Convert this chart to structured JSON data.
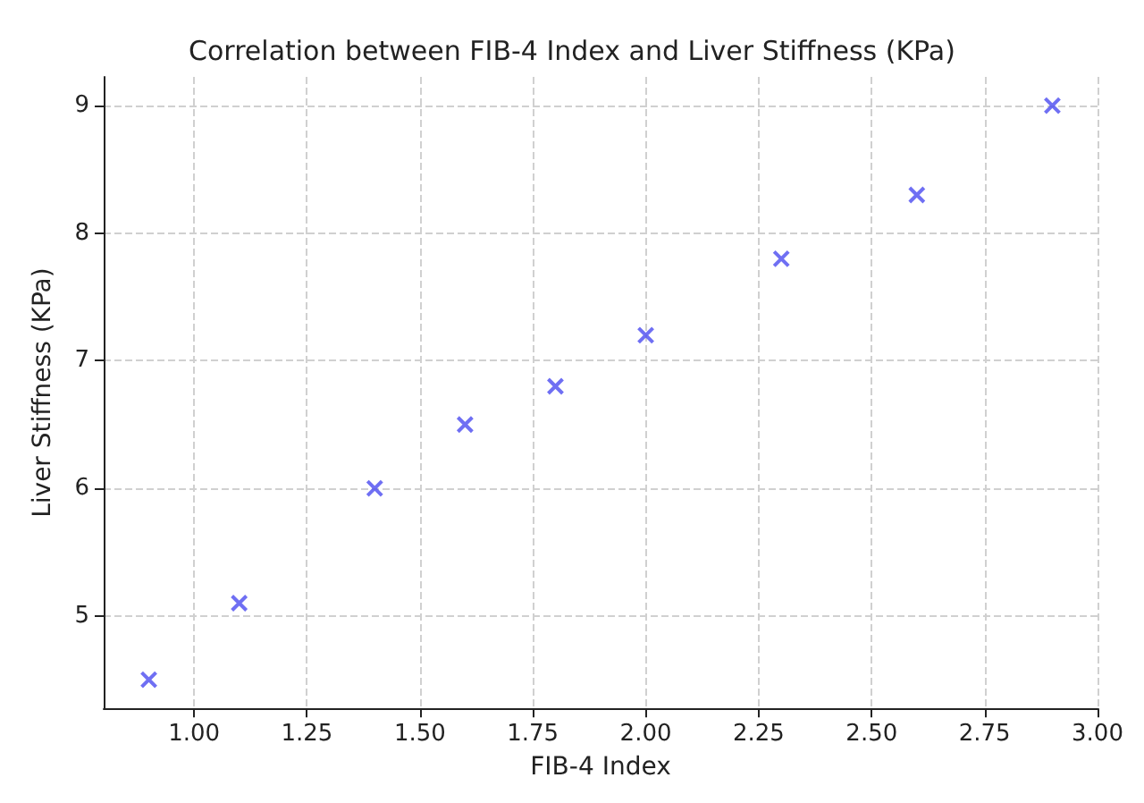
{
  "chart_data": {
    "type": "scatter",
    "title": "Correlation between FIB-4 Index and Liver Stiffness (KPa)",
    "xlabel": "FIB-4 Index",
    "ylabel": "Liver Stiffness (KPa)",
    "x": [
      0.9,
      1.1,
      1.4,
      1.6,
      1.8,
      2.0,
      2.3,
      2.6,
      2.9
    ],
    "series": [
      {
        "color": "#4b4bf0",
        "values": [
          4.5,
          5.1,
          6.0,
          6.5,
          6.8,
          7.2,
          7.8,
          8.3,
          9.0
        ]
      }
    ],
    "xlim": [
      0.8,
      3.0
    ],
    "ylim": [
      4.275,
      9.225
    ],
    "xticks": [
      {
        "value": 1,
        "label": "1.00"
      },
      {
        "value": 1.25,
        "label": "1.25"
      },
      {
        "value": 1.5,
        "label": "1.50"
      },
      {
        "value": 1.75,
        "label": "1.75"
      },
      {
        "value": 2,
        "label": "2.00"
      },
      {
        "value": 2.25,
        "label": "2.25"
      },
      {
        "value": 2.5,
        "label": "2.50"
      },
      {
        "value": 2.75,
        "label": "2.75"
      },
      {
        "value": 3,
        "label": "3.00"
      }
    ],
    "yticks": [
      5,
      6,
      7,
      8,
      9
    ],
    "grid": true,
    "marker": "cross"
  }
}
